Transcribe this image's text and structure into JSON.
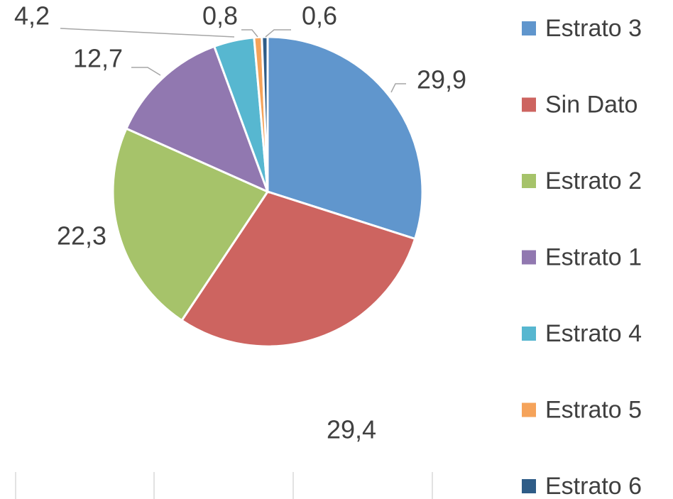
{
  "chart_data": {
    "type": "pie",
    "categories": [
      "Estrato 3",
      "Sin Dato",
      "Estrato 2",
      "Estrato 1",
      "Estrato 4",
      "Estrato 5",
      "Estrato 6"
    ],
    "values": [
      29.9,
      29.4,
      22.3,
      12.7,
      4.2,
      0.8,
      0.6
    ],
    "value_labels": [
      "29,9",
      "29,4",
      "22,3",
      "12,7",
      "4,2",
      "0,8",
      "0,6"
    ],
    "colors": [
      "#6096cd",
      "#cd6460",
      "#a6c36a",
      "#9178b0",
      "#57b7d0",
      "#f5a35a",
      "#2e5c87"
    ],
    "legend": "right"
  }
}
